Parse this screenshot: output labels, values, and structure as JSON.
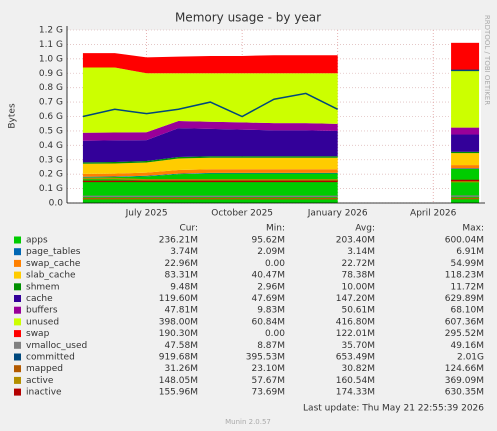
{
  "chart_data": {
    "type": "area",
    "title": "Memory usage - by year",
    "y_label": "Bytes",
    "side_text": "RRDTOOL / TOBI OETIKER",
    "last_update": "Last update: Thu May 21 22:55:39 2026",
    "version": "Munin 2.0.57",
    "legend_headers": [
      "Cur:",
      "Min:",
      "Avg:",
      "Max:"
    ],
    "categories": [
      null,
      null,
      "July 2025",
      null,
      null,
      "October 2025",
      null,
      null,
      "January 2026",
      null,
      null,
      "April 2026",
      null
    ],
    "ylim": [
      0,
      1.2
    ],
    "yticks": [
      {
        "value": 0,
        "label": "0.0"
      },
      {
        "value": 0.1,
        "label": "0.1 G"
      },
      {
        "value": 0.2,
        "label": "0.2 G"
      },
      {
        "value": 0.3,
        "label": "0.3 G"
      },
      {
        "value": 0.4,
        "label": "0.4 G"
      },
      {
        "value": 0.5,
        "label": "0.5 G"
      },
      {
        "value": 0.6,
        "label": "0.6 G"
      },
      {
        "value": 0.7,
        "label": "0.7 G"
      },
      {
        "value": 0.8,
        "label": "0.8 G"
      },
      {
        "value": 0.9,
        "label": "0.9 G"
      },
      {
        "value": 1.0,
        "label": "1.0 G"
      },
      {
        "value": 1.1,
        "label": "1.1 G"
      },
      {
        "value": 1.2,
        "label": "1.2 G"
      }
    ],
    "grid": true,
    "series": [
      {
        "name": "apps",
        "color": "#00cc00",
        "style": "area",
        "values": [
          0.178,
          0.18,
          0.185,
          0.2,
          0.205,
          0.205,
          0.205,
          0.205,
          0.205,
          null,
          null,
          null,
          0.236
        ],
        "stats": [
          "236.21M",
          "95.62M",
          "203.40M",
          "600.04M"
        ]
      },
      {
        "name": "page_tables",
        "color": "#0066b3",
        "style": "area",
        "values": [
          0.004,
          0.004,
          0.004,
          0.004,
          0.004,
          0.004,
          0.004,
          0.004,
          0.004,
          null,
          null,
          null,
          0.004
        ],
        "stats": [
          "3.74M",
          "2.09M",
          "3.14M",
          "6.91M"
        ]
      },
      {
        "name": "swap_cache",
        "color": "#ff8000",
        "style": "area",
        "values": [
          0.02,
          0.02,
          0.022,
          0.025,
          0.025,
          0.025,
          0.025,
          0.025,
          0.025,
          null,
          null,
          null,
          0.023
        ],
        "stats": [
          "22.96M",
          "0.00",
          "22.72M",
          "54.99M"
        ]
      },
      {
        "name": "slab_cache",
        "color": "#ffcc00",
        "style": "area",
        "values": [
          0.07,
          0.07,
          0.07,
          0.08,
          0.08,
          0.08,
          0.08,
          0.08,
          0.08,
          null,
          null,
          null,
          0.083
        ],
        "stats": [
          "83.31M",
          "40.47M",
          "78.38M",
          "118.23M"
        ]
      },
      {
        "name": "shmem",
        "color": "#008f00",
        "style": "area",
        "values": [
          0.01,
          0.01,
          0.01,
          0.01,
          0.01,
          0.01,
          0.01,
          0.01,
          0.01,
          null,
          null,
          null,
          0.009
        ],
        "stats": [
          "9.48M",
          "2.96M",
          "10.00M",
          "11.72M"
        ]
      },
      {
        "name": "cache",
        "color": "#330099",
        "style": "area",
        "values": [
          0.15,
          0.15,
          0.145,
          0.2,
          0.19,
          0.185,
          0.18,
          0.18,
          0.175,
          null,
          null,
          null,
          0.12
        ],
        "stats": [
          "119.60M",
          "47.69M",
          "147.20M",
          "629.89M"
        ]
      },
      {
        "name": "buffers",
        "color": "#990099",
        "style": "area",
        "values": [
          0.055,
          0.055,
          0.055,
          0.05,
          0.05,
          0.05,
          0.05,
          0.05,
          0.05,
          null,
          null,
          null,
          0.048
        ],
        "stats": [
          "47.81M",
          "9.83M",
          "50.61M",
          "68.10M"
        ]
      },
      {
        "name": "unused",
        "color": "#ccff00",
        "style": "area",
        "values": [
          0.453,
          0.451,
          0.409,
          0.331,
          0.336,
          0.341,
          0.346,
          0.346,
          0.351,
          null,
          null,
          null,
          0.398
        ],
        "stats": [
          "398.00M",
          "60.84M",
          "416.80M",
          "607.36M"
        ]
      },
      {
        "name": "swap",
        "color": "#ff0000",
        "style": "area",
        "values": [
          0.1,
          0.1,
          0.11,
          0.115,
          0.12,
          0.12,
          0.125,
          0.125,
          0.125,
          null,
          null,
          null,
          0.19
        ],
        "stats": [
          "190.30M",
          "0.00",
          "122.01M",
          "295.52M"
        ]
      },
      {
        "name": "vmalloc_used",
        "color": "#808080",
        "style": "line",
        "values": [
          0.046,
          0.046,
          0.046,
          0.046,
          0.046,
          0.046,
          0.046,
          0.046,
          0.046,
          null,
          null,
          null,
          0.048
        ],
        "stats": [
          "47.58M",
          "8.87M",
          "35.70M",
          "49.16M"
        ]
      },
      {
        "name": "committed",
        "color": "#00487d",
        "style": "line",
        "values": [
          0.6,
          0.65,
          0.62,
          0.65,
          0.7,
          0.6,
          0.72,
          0.76,
          0.65,
          null,
          null,
          null,
          0.92
        ],
        "stats": [
          "919.68M",
          "395.53M",
          "653.49M",
          "2.01G"
        ]
      },
      {
        "name": "mapped",
        "color": "#b35a00",
        "style": "line",
        "values": [
          0.03,
          0.03,
          0.03,
          0.03,
          0.03,
          0.03,
          0.03,
          0.03,
          0.03,
          null,
          null,
          null,
          0.031
        ],
        "stats": [
          "31.26M",
          "23.10M",
          "30.82M",
          "124.66M"
        ]
      },
      {
        "name": "active",
        "color": "#b38f00",
        "style": "line",
        "values": [
          0.17,
          0.17,
          0.16,
          0.16,
          0.16,
          0.16,
          0.16,
          0.16,
          0.16,
          null,
          null,
          null,
          0.148
        ],
        "stats": [
          "148.05M",
          "57.67M",
          "160.54M",
          "369.09M"
        ]
      },
      {
        "name": "inactive",
        "color": "#b30000",
        "style": "line",
        "values": [
          0.15,
          0.15,
          0.15,
          0.15,
          0.15,
          0.15,
          0.15,
          0.15,
          0.15,
          null,
          null,
          null,
          0.156
        ],
        "stats": [
          "155.96M",
          "73.69M",
          "174.33M",
          "630.35M"
        ]
      }
    ]
  }
}
